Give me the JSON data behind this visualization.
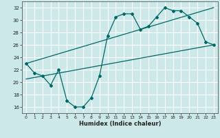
{
  "xlabel": "Humidex (Indice chaleur)",
  "background_color": "#cce8e8",
  "grid_color": "#ffffff",
  "line_color": "#006666",
  "xlim": [
    -0.5,
    23.5
  ],
  "ylim": [
    15,
    33
  ],
  "yticks": [
    16,
    18,
    20,
    22,
    24,
    26,
    28,
    30,
    32
  ],
  "xticks": [
    0,
    1,
    2,
    3,
    4,
    5,
    6,
    7,
    8,
    9,
    10,
    11,
    12,
    13,
    14,
    15,
    16,
    17,
    18,
    19,
    20,
    21,
    22,
    23
  ],
  "series1_x": [
    0,
    1,
    2,
    3,
    4,
    5,
    6,
    7,
    8,
    9,
    10,
    11,
    12,
    13,
    14,
    15,
    16,
    17,
    18,
    19,
    20,
    21,
    22,
    23
  ],
  "series1_y": [
    23.0,
    21.5,
    21.0,
    19.5,
    22.0,
    17.0,
    16.0,
    16.0,
    17.5,
    21.0,
    27.5,
    30.5,
    31.0,
    31.0,
    28.5,
    29.0,
    30.5,
    32.0,
    31.5,
    31.5,
    30.5,
    29.5,
    26.5,
    26.0
  ],
  "series2_x": [
    0,
    23
  ],
  "series2_y": [
    20.5,
    26.0
  ],
  "series3_x": [
    0,
    23
  ],
  "series3_y": [
    23.0,
    32.0
  ]
}
